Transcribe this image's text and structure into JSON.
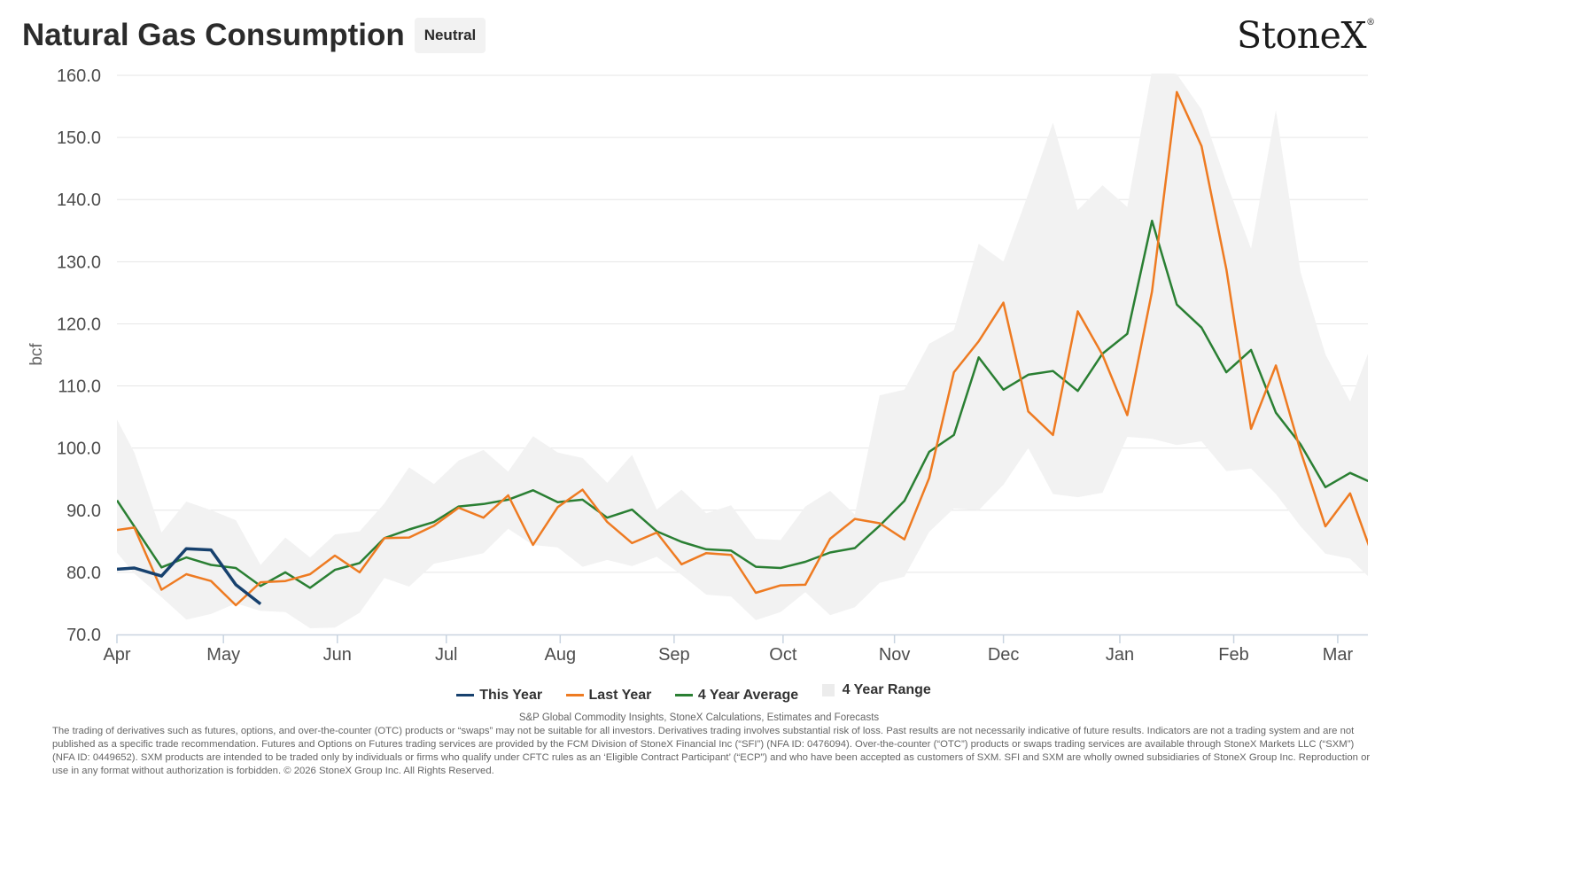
{
  "header": {
    "title": "Natural Gas Consumption",
    "badge": "Neutral",
    "logo": "StoneX"
  },
  "legend": {
    "this_year": "This Year",
    "last_year": "Last Year",
    "avg": "4 Year Average",
    "range": "4 Year Range"
  },
  "footer": {
    "source": "S&P Global Commodity Insights, StoneX Calculations, Estimates and Forecasts",
    "disclaimer": "The trading of derivatives such as futures, options, and over-the-counter (OTC) products or “swaps” may not be suitable for all investors. Derivatives trading involves substantial risk of loss. Past results are not necessarily indicative of future results. Indicators are not a trading system and are not published as a specific trade recommendation. Futures and Options on Futures trading services are provided by the FCM Division of StoneX Financial Inc (“SFI”) (NFA ID: 0476094). Over-the-counter (“OTC”) products or swaps trading services are available through StoneX Markets LLC (“SXM”) (NFA ID: 0449652). SXM products are intended to be traded only by individuals or firms who qualify under CFTC rules as an ‘Eligible Contract Participant’ (“ECP”) and who have been accepted as customers of SXM. SFI and SXM are wholly owned subsidiaries of StoneX Group Inc. Reproduction or use in any format without authorization is forbidden. © 2026 StoneX Group Inc. All Rights Reserved."
  },
  "chart_data": {
    "type": "line",
    "title": "Natural Gas Consumption",
    "ylabel": "bcf",
    "xlabel": "",
    "ylim": [
      70,
      160
    ],
    "yticks": [
      "70.0",
      "80.0",
      "90.0",
      "100.0",
      "110.0",
      "120.0",
      "130.0",
      "140.0",
      "150.0",
      "160.0"
    ],
    "month_labels": [
      "Apr",
      "May",
      "Jun",
      "Jul",
      "Aug",
      "Sep",
      "Oct",
      "Nov",
      "Dec",
      "Jan",
      "Feb",
      "Mar"
    ],
    "month_starts_week": [
      0,
      4.3,
      8.9,
      13.3,
      17.9,
      22.5,
      26.9,
      31.4,
      35.8,
      40.5,
      45.1,
      49.3
    ],
    "x_unit": "week of season (Apr 1 = 0)",
    "x_max": 52.7,
    "grid": true,
    "legend_position": "bottom",
    "colors": {
      "this_year": "#17416e",
      "last_year": "#ee7b22",
      "avg": "#2a7f33",
      "range": "#f2f2f2",
      "axis": "#c9d4e0",
      "grid": "#e6e6e6"
    },
    "series": [
      {
        "name": "This Year",
        "x": [
          0,
          0.7,
          1.8,
          2.8,
          3.8,
          4.8,
          5.8
        ],
        "values": [
          80.5,
          80.7,
          79.4,
          83.8,
          83.6,
          78.0,
          74.9
        ]
      },
      {
        "name": "Last Year",
        "x": [
          0,
          0.7,
          1.8,
          2.8,
          3.8,
          4.8,
          5.8,
          6.8,
          7.8,
          8.8,
          9.8,
          10.8,
          11.8,
          12.8,
          13.8,
          14.8,
          15.8,
          16.8,
          17.8,
          18.8,
          19.8,
          20.8,
          21.8,
          22.8,
          23.8,
          24.8,
          25.8,
          26.8,
          27.8,
          28.8,
          29.8,
          30.8,
          31.8,
          32.8,
          33.8,
          34.8,
          35.8,
          36.8,
          37.8,
          38.8,
          39.8,
          40.8,
          41.8,
          42.8,
          43.8,
          44.8,
          45.8,
          46.8,
          47.8,
          48.8,
          49.8,
          50.8,
          51.8,
          52.8,
          53.8
        ],
        "values": [
          86.8,
          87.2,
          77.2,
          79.7,
          78.6,
          74.7,
          78.4,
          78.6,
          79.7,
          82.7,
          80.0,
          85.5,
          85.6,
          87.5,
          90.4,
          88.8,
          92.4,
          84.4,
          90.5,
          93.3,
          88.1,
          84.7,
          86.4,
          81.3,
          83.1,
          82.8,
          76.7,
          77.9,
          78.0,
          85.4,
          88.6,
          87.9,
          85.3,
          95.2,
          112.2,
          117.2,
          123.4,
          105.9,
          102.1,
          122.0,
          115.0,
          105.3,
          125.2,
          157.3,
          148.6,
          128.8,
          103.1,
          113.3,
          99.5,
          87.4,
          92.7,
          81.6,
          95.7,
          96.0,
          96.0
        ]
      },
      {
        "name": "4 Year Average",
        "x": [
          0,
          1.8,
          2.8,
          3.8,
          4.8,
          5.8,
          6.8,
          7.8,
          8.8,
          9.8,
          10.8,
          11.8,
          12.8,
          13.8,
          14.8,
          15.8,
          16.8,
          17.8,
          18.8,
          19.8,
          20.8,
          21.8,
          22.8,
          23.8,
          24.8,
          25.8,
          26.8,
          27.8,
          28.8,
          29.8,
          30.8,
          31.8,
          32.8,
          33.8,
          34.8,
          35.8,
          36.8,
          37.8,
          38.8,
          39.8,
          40.8,
          41.8,
          42.8,
          43.8,
          44.8,
          45.8,
          46.8,
          47.8,
          48.8,
          49.8,
          50.8,
          51.8,
          52.8
        ],
        "values": [
          91.6,
          80.8,
          82.4,
          81.2,
          80.7,
          77.8,
          80.0,
          77.5,
          80.4,
          81.5,
          85.5,
          86.9,
          88.1,
          90.6,
          91.0,
          91.7,
          93.2,
          91.3,
          91.7,
          88.8,
          90.1,
          86.6,
          84.9,
          83.7,
          83.5,
          80.9,
          80.7,
          81.7,
          83.2,
          83.9,
          87.5,
          91.5,
          99.4,
          102.1,
          114.6,
          109.4,
          111.8,
          112.4,
          109.2,
          115.2,
          118.4,
          136.6,
          123.1,
          119.4,
          112.2,
          115.8,
          105.7,
          100.6,
          93.7,
          96.0,
          94.2,
          94.2,
          94.2
        ]
      },
      {
        "name": "4 Year Range",
        "x": [
          0,
          0.7,
          1.8,
          2.8,
          3.8,
          4.8,
          5.8,
          6.8,
          7.8,
          8.8,
          9.8,
          10.8,
          11.8,
          12.8,
          13.8,
          14.8,
          15.8,
          16.8,
          17.8,
          18.8,
          19.8,
          20.8,
          21.8,
          22.8,
          23.8,
          24.8,
          25.8,
          26.8,
          27.8,
          28.8,
          29.8,
          30.8,
          31.8,
          32.8,
          33.8,
          34.8,
          35.8,
          36.8,
          37.8,
          38.8,
          39.8,
          40.8,
          41.8,
          42.8,
          43.8,
          44.8,
          45.8,
          46.8,
          47.8,
          48.8,
          49.8,
          50.8,
          51.8,
          52.8
        ],
        "low": [
          83.2,
          79.8,
          76.0,
          72.4,
          73.3,
          75.0,
          73.8,
          73.6,
          71.0,
          71.1,
          73.5,
          79.1,
          77.7,
          81.4,
          82.2,
          83.1,
          87.0,
          84.4,
          84.0,
          80.9,
          82.0,
          81.0,
          82.5,
          79.6,
          76.4,
          76.1,
          72.3,
          73.6,
          76.8,
          73.1,
          74.4,
          78.3,
          79.3,
          86.5,
          90.3,
          90.0,
          94.1,
          100.0,
          92.6,
          92.1,
          92.8,
          101.8,
          101.5,
          100.5,
          101.1,
          96.3,
          96.7,
          92.6,
          87.4,
          83.0,
          82.2,
          78.3,
          78.3,
          78.3
        ],
        "high": [
          104.6,
          99.3,
          86.4,
          91.4,
          90.0,
          88.4,
          81.2,
          85.6,
          82.4,
          86.1,
          86.6,
          91.1,
          96.9,
          94.2,
          98.0,
          99.7,
          96.2,
          101.9,
          99.3,
          98.4,
          94.4,
          98.9,
          90.1,
          93.3,
          89.5,
          90.8,
          85.4,
          85.2,
          90.6,
          93.1,
          89.3,
          108.5,
          109.4,
          116.8,
          119.0,
          132.9,
          130.0,
          140.9,
          152.4,
          138.3,
          142.3,
          138.8,
          160.8,
          160.2,
          154.5,
          142.8,
          132.1,
          154.4,
          128.3,
          115.1,
          107.5,
          118.2,
          115.1,
          115.1
        ]
      }
    ]
  }
}
